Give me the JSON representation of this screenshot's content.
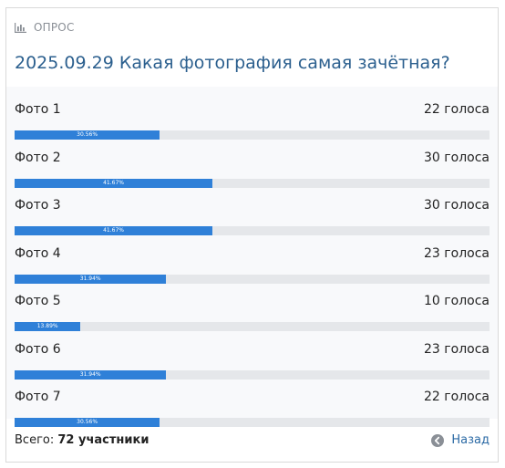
{
  "poll": {
    "header_label": "ОПРОС",
    "title": "2025.09.29 Какая фотография самая зачётная?",
    "options": [
      {
        "label": "Фото 1",
        "votes": "22 голоса",
        "percent_label": "30.56%",
        "percent": 30.56
      },
      {
        "label": "Фото 2",
        "votes": "30 голоса",
        "percent_label": "41.67%",
        "percent": 41.67
      },
      {
        "label": "Фото 3",
        "votes": "30 голоса",
        "percent_label": "41.67%",
        "percent": 41.67
      },
      {
        "label": "Фото 4",
        "votes": "23 голоса",
        "percent_label": "31.94%",
        "percent": 31.94
      },
      {
        "label": "Фото 5",
        "votes": "10 голоса",
        "percent_label": "13.89%",
        "percent": 13.89
      },
      {
        "label": "Фото 6",
        "votes": "23 голоса",
        "percent_label": "31.94%",
        "percent": 31.94
      },
      {
        "label": "Фото 7",
        "votes": "22 голоса",
        "percent_label": "30.56%",
        "percent": 30.56
      }
    ],
    "total_prefix": "Всего:",
    "total_value": "72 участники",
    "back_label": "Назад"
  },
  "colors": {
    "bar": "#2f80d8",
    "track": "#e5e7ea",
    "title": "#2b5f8e",
    "link": "#2b6aa5"
  },
  "icons": {
    "header": "bar-chart-icon",
    "back": "arrow-left-circle-icon"
  }
}
